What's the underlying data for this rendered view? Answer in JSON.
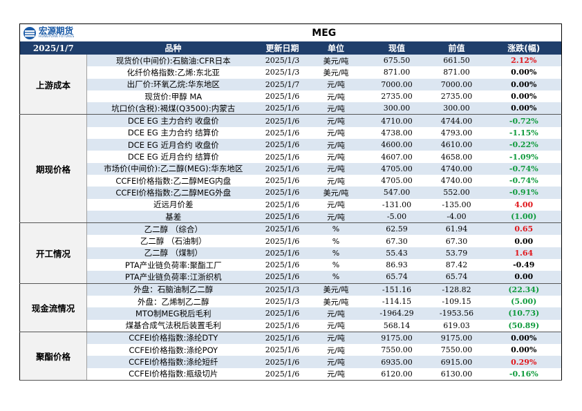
{
  "logo": {
    "cn": "宏源期货",
    "en": "HONGYUAN FUTURES"
  },
  "title": "MEG",
  "header": {
    "date": "2025/1/7",
    "item": "品种",
    "updated": "更新日期",
    "unit": "单位",
    "current": "现值",
    "previous": "前值",
    "change": "涨跌(幅)"
  },
  "colors": {
    "header_bg": "#1f3e6b",
    "alt_row_bg": "#dce6f1",
    "up": "#e0161b",
    "down": "#0f9a3c"
  },
  "groups": [
    {
      "name": "上游成本",
      "rows": [
        {
          "item": "现货价(中间价):石脑油:CFR日本",
          "date": "2025/1/3",
          "unit": "美元/吨",
          "current": "675.50",
          "previous": "661.50",
          "change": "2.12%",
          "tone": "pos"
        },
        {
          "item": "化纤价格指数:乙烯:东北亚",
          "date": "2025/1/3",
          "unit": "美元/吨",
          "current": "871.00",
          "previous": "871.00",
          "change": "0.00%",
          "tone": "neu"
        },
        {
          "item": "出厂价:环氧乙烷:华东地区",
          "date": "2025/1/7",
          "unit": "元/吨",
          "current": "7000.00",
          "previous": "7000.00",
          "change": "0.00%",
          "tone": "neu"
        },
        {
          "item": "现货价:甲醇 MA",
          "date": "2025/1/6",
          "unit": "元/吨",
          "current": "2735.00",
          "previous": "2735.00",
          "change": "0.00%",
          "tone": "neu"
        },
        {
          "item": "坑口价(含税):褐煤(Q3500):内蒙古",
          "date": "2025/1/6",
          "unit": "元/吨",
          "current": "300.00",
          "previous": "300.00",
          "change": "0.00%",
          "tone": "neu"
        }
      ]
    },
    {
      "name": "期现价格",
      "rows": [
        {
          "item": "DCE EG 主力合约 收盘价",
          "date": "2025/1/6",
          "unit": "元/吨",
          "current": "4710.00",
          "previous": "4744.00",
          "change": "-0.72%",
          "tone": "neg"
        },
        {
          "item": "DCE EG 主力合约 结算价",
          "date": "2025/1/6",
          "unit": "元/吨",
          "current": "4738.00",
          "previous": "4793.00",
          "change": "-1.15%",
          "tone": "neg"
        },
        {
          "item": "DCE EG 近月合约 收盘价",
          "date": "2025/1/6",
          "unit": "元/吨",
          "current": "4600.00",
          "previous": "4610.00",
          "change": "-0.22%",
          "tone": "neg"
        },
        {
          "item": "DCE EG 近月合约 结算价",
          "date": "2025/1/6",
          "unit": "元/吨",
          "current": "4607.00",
          "previous": "4658.00",
          "change": "-1.09%",
          "tone": "neg"
        },
        {
          "item": "市场价(中间价):乙二醇(MEG):华东地区",
          "date": "2025/1/6",
          "unit": "元/吨",
          "current": "4705.00",
          "previous": "4740.00",
          "change": "-0.74%",
          "tone": "neg"
        },
        {
          "item": "CCFEI价格指数:乙二醇MEG内盘",
          "date": "2025/1/6",
          "unit": "元/吨",
          "current": "4705.00",
          "previous": "4740.00",
          "change": "-0.74%",
          "tone": "neg"
        },
        {
          "item": "CCFEI价格指数:乙二醇MEG外盘",
          "date": "2025/1/6",
          "unit": "美元/吨",
          "current": "547.00",
          "previous": "552.00",
          "change": "-0.91%",
          "tone": "neg"
        },
        {
          "item": "近远月价差",
          "date": "2025/1/6",
          "unit": "元/吨",
          "current": "-131.00",
          "previous": "-135.00",
          "change": "4.00",
          "tone": "pos"
        },
        {
          "item": "基差",
          "date": "2025/1/6",
          "unit": "元/吨",
          "current": "-5.00",
          "previous": "-4.00",
          "change": "(1.00)",
          "tone": "neg"
        }
      ]
    },
    {
      "name": "开工情况",
      "rows": [
        {
          "item": "乙二醇 （综合）",
          "date": "2025/1/6",
          "unit": "%",
          "current": "62.59",
          "previous": "61.94",
          "change": "0.65",
          "tone": "pos"
        },
        {
          "item": "乙二醇 （石油制）",
          "date": "2025/1/6",
          "unit": "%",
          "current": "67.30",
          "previous": "67.30",
          "change": "0.00",
          "tone": "neu"
        },
        {
          "item": "乙二醇 （煤制）",
          "date": "2025/1/6",
          "unit": "%",
          "current": "55.43",
          "previous": "53.79",
          "change": "1.64",
          "tone": "pos"
        },
        {
          "item": "PTA产业链负荷率:聚酯工厂",
          "date": "2025/1/6",
          "unit": "%",
          "current": "86.93",
          "previous": "87.42",
          "change": "-0.49",
          "tone": "neu"
        },
        {
          "item": "PTA产业链负荷率:江浙织机",
          "date": "2025/1/6",
          "unit": "%",
          "current": "65.74",
          "previous": "65.74",
          "change": "0.00",
          "tone": "neu"
        }
      ]
    },
    {
      "name": "现金流情况",
      "rows": [
        {
          "item": "外盘：石脑油制乙二醇",
          "date": "2025/1/3",
          "unit": "美元/吨",
          "current": "-151.16",
          "previous": "-128.82",
          "change": "(22.34)",
          "tone": "neg"
        },
        {
          "item": "外盘：乙烯制乙二醇",
          "date": "2025/1/3",
          "unit": "美元/吨",
          "current": "-114.15",
          "previous": "-109.15",
          "change": "(5.00)",
          "tone": "neg"
        },
        {
          "item": "MTO制MEG税后毛利",
          "date": "2025/1/6",
          "unit": "元/吨",
          "current": "-1964.29",
          "previous": "-1953.56",
          "change": "(10.73)",
          "tone": "neg"
        },
        {
          "item": "煤基合成气法税后装置毛利",
          "date": "2025/1/6",
          "unit": "元/吨",
          "current": "568.14",
          "previous": "619.03",
          "change": "(50.89)",
          "tone": "neg"
        }
      ]
    },
    {
      "name": "聚酯价格",
      "rows": [
        {
          "item": "CCFEI价格指数:涤纶DTY",
          "date": "2025/1/6",
          "unit": "元/吨",
          "current": "9175.00",
          "previous": "9175.00",
          "change": "0.00%",
          "tone": "neu"
        },
        {
          "item": "CCFEI价格指数:涤纶POY",
          "date": "2025/1/6",
          "unit": "元/吨",
          "current": "7550.00",
          "previous": "7550.00",
          "change": "0.00%",
          "tone": "neu"
        },
        {
          "item": "CCFEI价格指数:涤纶短纤",
          "date": "2025/1/6",
          "unit": "元/吨",
          "current": "6935.00",
          "previous": "6915.00",
          "change": "0.29%",
          "tone": "pos"
        },
        {
          "item": "CCFEI价格指数:瓶级切片",
          "date": "2025/1/6",
          "unit": "元/吨",
          "current": "6120.00",
          "previous": "6130.00",
          "change": "-0.16%",
          "tone": "neg"
        }
      ]
    }
  ]
}
